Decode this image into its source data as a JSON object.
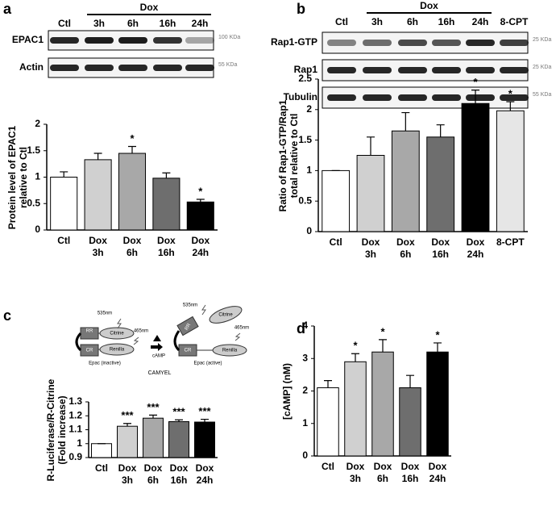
{
  "figure": {
    "panel_labels": [
      "a",
      "b",
      "c",
      "d"
    ]
  },
  "blot_a": {
    "group": "Dox",
    "lanes": [
      "Ctl",
      "3h",
      "6h",
      "16h",
      "24h"
    ],
    "rows": [
      "EPAC1",
      "Actin"
    ],
    "markers": [
      "100 KDa",
      "55 KDa"
    ]
  },
  "blot_b": {
    "group": "Dox",
    "lanes": [
      "Ctl",
      "3h",
      "6h",
      "16h",
      "24h",
      "8-CPT"
    ],
    "rows": [
      "Rap1-GTP",
      "Rap1",
      "Tubulin"
    ],
    "markers": [
      "25 KDa",
      "25 KDa",
      "55 KDa"
    ]
  },
  "diagram_c": {
    "inactive": {
      "rr": "RR",
      "cr": "CR",
      "citrine": "Citrine",
      "renilla": "Renilla",
      "emission": "535nm",
      "excitation": "465nm",
      "state": "Epac (inactive)"
    },
    "active": {
      "rr": "RR",
      "cr": "CR",
      "citrine": "Citrine",
      "renilla": "Renilla",
      "emission": "535nm",
      "excitation": "465nm",
      "state": "Epac (active)"
    },
    "trigger": "cAMP",
    "sensor": "CAMYEL"
  },
  "chart_data": [
    {
      "type": "bar",
      "y_label": "Protein level of EPAC1\nrelative to Ctl",
      "categories": [
        "Ctl",
        "Dox\n3h",
        "Dox\n6h",
        "Dox\n16h",
        "Dox\n24h"
      ],
      "values": [
        1.0,
        1.33,
        1.45,
        0.98,
        0.53
      ],
      "errors": [
        0.1,
        0.12,
        0.13,
        0.1,
        0.05
      ],
      "annotations": [
        null,
        null,
        "*",
        null,
        "*"
      ],
      "colors": [
        "#ffffff",
        "#d0d0d0",
        "#a8a8a8",
        "#6e6e6e",
        "#000000"
      ],
      "ylim": [
        0,
        2
      ],
      "yticks": [
        0,
        0.5,
        1,
        1.5,
        2
      ]
    },
    {
      "type": "bar",
      "y_label": "Ratio of Rap1-GTP/Rap1\ntotal relative to Ctl",
      "categories": [
        "Ctl",
        "Dox\n3h",
        "Dox\n6h",
        "Dox\n16h",
        "Dox\n24h",
        "8-CPT"
      ],
      "values": [
        1.0,
        1.25,
        1.65,
        1.55,
        2.1,
        1.98
      ],
      "errors": [
        0,
        0.3,
        0.3,
        0.2,
        0.22,
        0.15
      ],
      "annotations": [
        null,
        null,
        null,
        null,
        "*",
        "*"
      ],
      "colors": [
        "#ffffff",
        "#d0d0d0",
        "#a8a8a8",
        "#6e6e6e",
        "#000000",
        "#e6e6e6"
      ],
      "ylim": [
        0,
        2.5
      ],
      "yticks": [
        0,
        0.5,
        1,
        1.5,
        2,
        2.5
      ]
    },
    {
      "type": "bar",
      "y_label": "R-Luciferase/R-Citrine\n(Fold increase)",
      "categories": [
        "Ctl",
        "Dox\n3h",
        "Dox\n6h",
        "Dox\n16h",
        "Dox\n24h"
      ],
      "values": [
        1.0,
        1.125,
        1.183,
        1.158,
        1.155
      ],
      "errors": [
        0,
        0.02,
        0.022,
        0.013,
        0.02
      ],
      "annotations": [
        null,
        "***",
        "***",
        "***",
        "***"
      ],
      "colors": [
        "#ffffff",
        "#d0d0d0",
        "#a8a8a8",
        "#6e6e6e",
        "#000000"
      ],
      "ylim": [
        0.9,
        1.3
      ],
      "yticks": [
        0.9,
        1,
        1.1,
        1.2,
        1.3
      ]
    },
    {
      "type": "bar",
      "y_label": "[cAMP] (nM)",
      "categories": [
        "Ctl",
        "Dox\n3h",
        "Dox\n6h",
        "Dox\n16h",
        "Dox\n24h"
      ],
      "values": [
        2.1,
        2.9,
        3.2,
        2.1,
        3.2
      ],
      "errors": [
        0.22,
        0.25,
        0.38,
        0.38,
        0.28
      ],
      "annotations": [
        null,
        "*",
        "*",
        null,
        "*"
      ],
      "colors": [
        "#ffffff",
        "#d0d0d0",
        "#a8a8a8",
        "#6e6e6e",
        "#000000"
      ],
      "ylim": [
        0,
        4
      ],
      "yticks": [
        0,
        1,
        2,
        3,
        4
      ]
    }
  ]
}
